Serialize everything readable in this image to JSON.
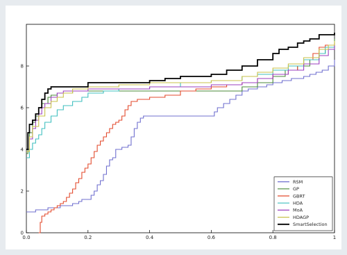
{
  "chart_data": {
    "type": "line",
    "title": "",
    "xlabel": "",
    "ylabel": "",
    "xlim": [
      0,
      1
    ],
    "ylim": [
      0,
      10
    ],
    "x_ticks": [
      "0.0",
      "0.2",
      "0.4",
      "0.6",
      "0.8",
      "1"
    ],
    "y_ticks": [
      "0",
      "2",
      "4",
      "6",
      "8"
    ],
    "grid": false,
    "legend_position": "bottom-right",
    "series": [
      {
        "name": "RSM",
        "color": "#6f6fcf",
        "points": [
          [
            0.0,
            1.0
          ],
          [
            0.02,
            1.0
          ],
          [
            0.03,
            1.1
          ],
          [
            0.06,
            1.1
          ],
          [
            0.07,
            1.2
          ],
          [
            0.1,
            1.2
          ],
          [
            0.11,
            1.3
          ],
          [
            0.14,
            1.3
          ],
          [
            0.15,
            1.4
          ],
          [
            0.17,
            1.5
          ],
          [
            0.18,
            1.6
          ],
          [
            0.2,
            1.6
          ],
          [
            0.21,
            1.8
          ],
          [
            0.22,
            2.0
          ],
          [
            0.23,
            2.3
          ],
          [
            0.24,
            2.5
          ],
          [
            0.25,
            2.8
          ],
          [
            0.26,
            3.2
          ],
          [
            0.27,
            3.5
          ],
          [
            0.28,
            3.6
          ],
          [
            0.29,
            4.0
          ],
          [
            0.31,
            4.1
          ],
          [
            0.33,
            4.2
          ],
          [
            0.34,
            4.6
          ],
          [
            0.35,
            5.0
          ],
          [
            0.36,
            5.3
          ],
          [
            0.37,
            5.5
          ],
          [
            0.38,
            5.6
          ],
          [
            0.4,
            5.6
          ],
          [
            0.45,
            5.6
          ],
          [
            0.5,
            5.6
          ],
          [
            0.55,
            5.6
          ],
          [
            0.6,
            5.6
          ],
          [
            0.61,
            5.8
          ],
          [
            0.62,
            6.0
          ],
          [
            0.64,
            6.2
          ],
          [
            0.66,
            6.4
          ],
          [
            0.68,
            6.6
          ],
          [
            0.7,
            6.8
          ],
          [
            0.72,
            6.9
          ],
          [
            0.75,
            7.0
          ],
          [
            0.78,
            7.1
          ],
          [
            0.8,
            7.2
          ],
          [
            0.83,
            7.3
          ],
          [
            0.86,
            7.4
          ],
          [
            0.9,
            7.5
          ],
          [
            0.92,
            7.6
          ],
          [
            0.94,
            7.7
          ],
          [
            0.96,
            7.8
          ],
          [
            0.98,
            8.0
          ],
          [
            1.0,
            8.3
          ]
        ]
      },
      {
        "name": "GP",
        "color": "#4a8a3a",
        "points": [
          [
            0.0,
            3.8
          ],
          [
            0.005,
            4.0
          ],
          [
            0.01,
            4.8
          ],
          [
            0.02,
            5.3
          ],
          [
            0.03,
            5.6
          ],
          [
            0.04,
            6.0
          ],
          [
            0.05,
            6.2
          ],
          [
            0.07,
            6.5
          ],
          [
            0.08,
            6.6
          ],
          [
            0.1,
            6.7
          ],
          [
            0.15,
            6.8
          ],
          [
            0.2,
            6.8
          ],
          [
            0.3,
            6.8
          ],
          [
            0.4,
            6.8
          ],
          [
            0.5,
            6.8
          ],
          [
            0.6,
            6.8
          ],
          [
            0.7,
            7.0
          ],
          [
            0.75,
            7.2
          ],
          [
            0.8,
            7.5
          ],
          [
            0.84,
            7.8
          ],
          [
            0.88,
            8.0
          ],
          [
            0.92,
            8.3
          ],
          [
            0.95,
            8.6
          ],
          [
            0.97,
            8.8
          ],
          [
            1.0,
            9.3
          ]
        ]
      },
      {
        "name": "GBRT",
        "color": "#e34a2c",
        "points": [
          [
            0.04,
            0.0
          ],
          [
            0.045,
            0.5
          ],
          [
            0.05,
            0.8
          ],
          [
            0.06,
            0.9
          ],
          [
            0.07,
            1.0
          ],
          [
            0.08,
            1.1
          ],
          [
            0.09,
            1.2
          ],
          [
            0.1,
            1.3
          ],
          [
            0.11,
            1.4
          ],
          [
            0.12,
            1.5
          ],
          [
            0.13,
            1.7
          ],
          [
            0.14,
            1.9
          ],
          [
            0.15,
            2.1
          ],
          [
            0.16,
            2.4
          ],
          [
            0.17,
            2.6
          ],
          [
            0.18,
            2.9
          ],
          [
            0.19,
            3.1
          ],
          [
            0.2,
            3.3
          ],
          [
            0.21,
            3.6
          ],
          [
            0.22,
            3.9
          ],
          [
            0.23,
            4.2
          ],
          [
            0.24,
            4.4
          ],
          [
            0.25,
            4.6
          ],
          [
            0.26,
            4.8
          ],
          [
            0.27,
            5.0
          ],
          [
            0.28,
            5.2
          ],
          [
            0.29,
            5.3
          ],
          [
            0.3,
            5.4
          ],
          [
            0.31,
            5.6
          ],
          [
            0.32,
            5.9
          ],
          [
            0.33,
            6.1
          ],
          [
            0.34,
            6.3
          ],
          [
            0.36,
            6.4
          ],
          [
            0.38,
            6.4
          ],
          [
            0.4,
            6.5
          ],
          [
            0.45,
            6.6
          ],
          [
            0.5,
            6.8
          ],
          [
            0.55,
            6.9
          ],
          [
            0.6,
            7.0
          ],
          [
            0.65,
            7.1
          ],
          [
            0.7,
            7.2
          ],
          [
            0.75,
            7.4
          ],
          [
            0.8,
            7.6
          ],
          [
            0.85,
            7.8
          ],
          [
            0.88,
            8.0
          ],
          [
            0.9,
            8.3
          ],
          [
            0.93,
            8.6
          ],
          [
            0.95,
            8.9
          ],
          [
            0.97,
            9.0
          ],
          [
            1.0,
            9.1
          ]
        ]
      },
      {
        "name": "HDA",
        "color": "#3fbfbf",
        "points": [
          [
            0.0,
            3.6
          ],
          [
            0.01,
            4.0
          ],
          [
            0.02,
            4.3
          ],
          [
            0.03,
            4.5
          ],
          [
            0.04,
            4.7
          ],
          [
            0.05,
            5.0
          ],
          [
            0.06,
            5.3
          ],
          [
            0.08,
            5.6
          ],
          [
            0.1,
            5.9
          ],
          [
            0.12,
            6.1
          ],
          [
            0.15,
            6.3
          ],
          [
            0.18,
            6.5
          ],
          [
            0.2,
            6.7
          ],
          [
            0.25,
            6.8
          ],
          [
            0.3,
            6.9
          ],
          [
            0.4,
            7.0
          ],
          [
            0.5,
            7.2
          ],
          [
            0.6,
            7.3
          ],
          [
            0.7,
            7.5
          ],
          [
            0.75,
            7.6
          ],
          [
            0.8,
            7.8
          ],
          [
            0.85,
            8.0
          ],
          [
            0.9,
            8.3
          ],
          [
            0.95,
            8.6
          ],
          [
            0.97,
            8.9
          ],
          [
            1.0,
            9.0
          ]
        ]
      },
      {
        "name": "MoA",
        "color": "#9b3fbf",
        "points": [
          [
            0.0,
            3.9
          ],
          [
            0.01,
            4.5
          ],
          [
            0.02,
            5.0
          ],
          [
            0.03,
            5.4
          ],
          [
            0.04,
            5.7
          ],
          [
            0.05,
            6.0
          ],
          [
            0.06,
            6.2
          ],
          [
            0.08,
            6.5
          ],
          [
            0.1,
            6.7
          ],
          [
            0.12,
            6.8
          ],
          [
            0.2,
            6.9
          ],
          [
            0.3,
            6.9
          ],
          [
            0.4,
            7.0
          ],
          [
            0.5,
            7.0
          ],
          [
            0.6,
            7.1
          ],
          [
            0.7,
            7.2
          ],
          [
            0.75,
            7.4
          ],
          [
            0.8,
            7.6
          ],
          [
            0.85,
            7.8
          ],
          [
            0.9,
            8.1
          ],
          [
            0.95,
            8.5
          ],
          [
            0.98,
            8.8
          ],
          [
            1.0,
            9.0
          ]
        ]
      },
      {
        "name": "HDAGP",
        "color": "#c8c24a",
        "points": [
          [
            0.0,
            3.9
          ],
          [
            0.01,
            4.6
          ],
          [
            0.02,
            5.1
          ],
          [
            0.04,
            5.6
          ],
          [
            0.06,
            6.0
          ],
          [
            0.08,
            6.3
          ],
          [
            0.1,
            6.5
          ],
          [
            0.12,
            6.7
          ],
          [
            0.15,
            6.9
          ],
          [
            0.2,
            7.0
          ],
          [
            0.3,
            7.1
          ],
          [
            0.4,
            7.2
          ],
          [
            0.5,
            7.2
          ],
          [
            0.6,
            7.3
          ],
          [
            0.7,
            7.5
          ],
          [
            0.75,
            7.7
          ],
          [
            0.8,
            7.9
          ],
          [
            0.85,
            8.1
          ],
          [
            0.9,
            8.4
          ],
          [
            0.95,
            8.8
          ],
          [
            0.98,
            9.0
          ],
          [
            1.0,
            9.2
          ]
        ]
      },
      {
        "name": "SmartSelection",
        "color": "#000000",
        "points": [
          [
            0.0,
            4.0
          ],
          [
            0.005,
            4.8
          ],
          [
            0.01,
            5.2
          ],
          [
            0.02,
            5.4
          ],
          [
            0.03,
            5.7
          ],
          [
            0.04,
            6.0
          ],
          [
            0.05,
            6.4
          ],
          [
            0.06,
            6.7
          ],
          [
            0.07,
            6.9
          ],
          [
            0.08,
            7.0
          ],
          [
            0.1,
            7.0
          ],
          [
            0.15,
            7.0
          ],
          [
            0.2,
            7.2
          ],
          [
            0.3,
            7.2
          ],
          [
            0.4,
            7.3
          ],
          [
            0.45,
            7.4
          ],
          [
            0.5,
            7.5
          ],
          [
            0.6,
            7.6
          ],
          [
            0.65,
            7.8
          ],
          [
            0.7,
            8.0
          ],
          [
            0.75,
            8.3
          ],
          [
            0.8,
            8.6
          ],
          [
            0.82,
            8.8
          ],
          [
            0.85,
            8.9
          ],
          [
            0.88,
            9.1
          ],
          [
            0.9,
            9.2
          ],
          [
            0.92,
            9.3
          ],
          [
            0.95,
            9.5
          ],
          [
            1.0,
            9.6
          ]
        ]
      }
    ]
  }
}
